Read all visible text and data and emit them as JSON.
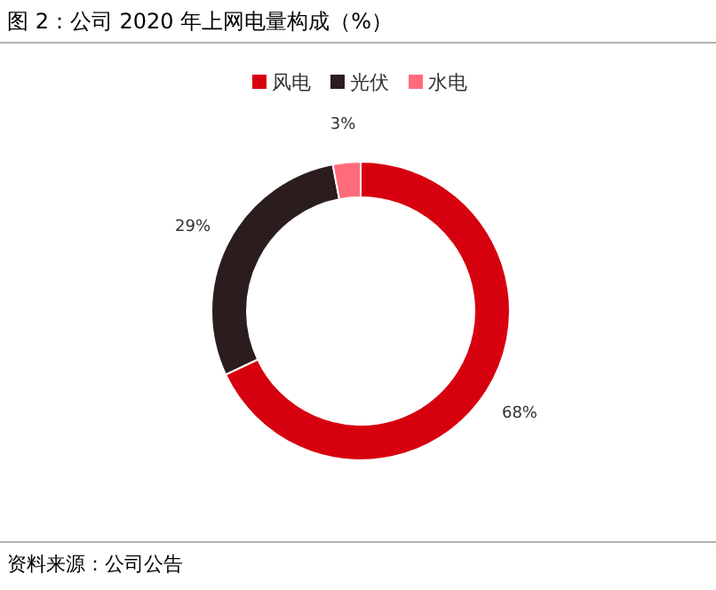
{
  "chart_data": {
    "type": "donut",
    "title": "图 2：公司 2020 年上网电量构成（%）",
    "categories": [
      "风电",
      "光伏",
      "水电"
    ],
    "values": [
      68,
      29,
      3
    ],
    "colors": [
      "#d7000f",
      "#2b1d1e",
      "#ff6b7a"
    ],
    "value_labels": [
      "68%",
      "29%",
      "3%"
    ],
    "legend": "top",
    "annotations": [
      "资料来源：公司公告"
    ]
  }
}
